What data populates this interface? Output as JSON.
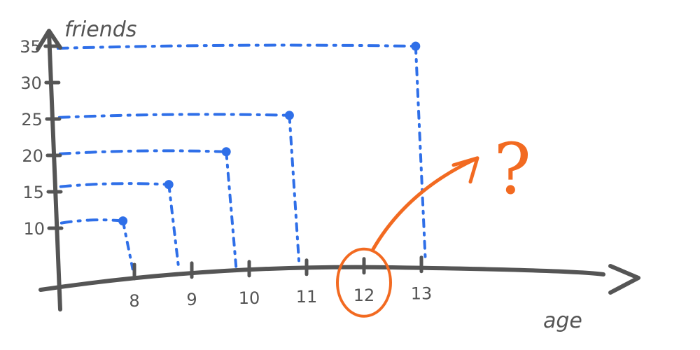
{
  "chart_data": {
    "type": "scatter",
    "xlabel": "age",
    "ylabel": "friends",
    "x_ticks": [
      "8",
      "9",
      "10",
      "11",
      "12",
      "13"
    ],
    "y_ticks": [
      "10",
      "15",
      "20",
      "25",
      "30",
      "35"
    ],
    "xlim": [
      7,
      13.5
    ],
    "ylim": [
      5,
      38
    ],
    "points": [
      {
        "x": 7.8,
        "y": 11
      },
      {
        "x": 8.6,
        "y": 16
      },
      {
        "x": 9.6,
        "y": 20.5
      },
      {
        "x": 10.7,
        "y": 25.5
      },
      {
        "x": 12.9,
        "y": 35
      }
    ],
    "highlight": {
      "tick": "12",
      "annotation": "?"
    },
    "grid": false,
    "legend": "none"
  },
  "colors": {
    "axis": "#555555",
    "points": "#2f6fe8",
    "highlight": "#f26a21"
  }
}
